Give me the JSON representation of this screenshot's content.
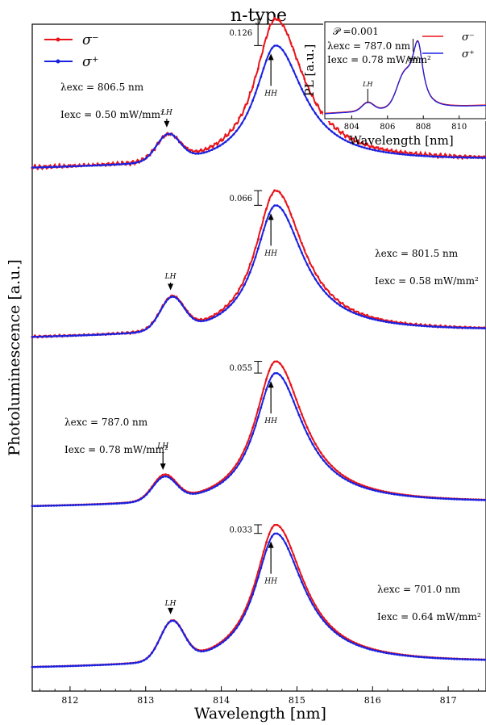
{
  "chart_data": {
    "type": "line",
    "title": "n-type",
    "xlabel": "Wavelength [nm]",
    "ylabel": "Photoluminescence [a.u.]",
    "xlim": [
      811.5,
      817.5
    ],
    "x_ticks": [
      812,
      813,
      814,
      815,
      816,
      817
    ],
    "legend": {
      "placement": "top-left",
      "entries": [
        "σ⁻",
        "σ⁺"
      ]
    },
    "colors": {
      "sigma_minus": "#e8141b",
      "sigma_plus": "#1a22e0"
    },
    "peak_labels": {
      "lh": "LH",
      "hh": "HH"
    },
    "panels": [
      {
        "lambda_label": "λexc = 806.5 nm",
        "intensity_label": "Iexc = 0.50 mW/mm²",
        "diff_label": "0.126",
        "lh_x": 813.3,
        "hh_x": 814.72,
        "sigma_minus": {
          "baseline": 0.06,
          "lh_height": 0.17,
          "hh_height": 0.99,
          "noise": 0.015
        },
        "sigma_plus": {
          "baseline": 0.06,
          "lh_height": 0.18,
          "hh_height": 0.81
        }
      },
      {
        "lambda_label": "λexc = 801.5 nm",
        "intensity_label": "Iexc = 0.58 mW/mm²",
        "diff_label": "0.066",
        "lh_x": 813.35,
        "hh_x": 814.72,
        "sigma_minus": {
          "baseline": 0.05,
          "lh_height": 0.22,
          "hh_height": 0.98,
          "noise": 0.008
        },
        "sigma_plus": {
          "baseline": 0.05,
          "lh_height": 0.22,
          "hh_height": 0.88
        }
      },
      {
        "lambda_label": "λexc = 787.0 nm",
        "intensity_label": "Iexc = 0.78 mW/mm²",
        "diff_label": "0.055",
        "lh_x": 813.25,
        "hh_x": 814.72,
        "sigma_minus": {
          "baseline": 0.03,
          "lh_height": 0.17,
          "hh_height": 0.98,
          "noise": 0
        },
        "sigma_plus": {
          "baseline": 0.03,
          "lh_height": 0.16,
          "hh_height": 0.9
        }
      },
      {
        "lambda_label": "λexc = 701.0 nm",
        "intensity_label": "Iexc = 0.64 mW/mm²",
        "diff_label": "0.033",
        "lh_x": 813.35,
        "hh_x": 814.72,
        "sigma_minus": {
          "baseline": 0.04,
          "lh_height": 0.27,
          "hh_height": 0.98,
          "noise": 0
        },
        "sigma_plus": {
          "baseline": 0.04,
          "lh_height": 0.27,
          "hh_height": 0.92
        }
      }
    ],
    "inset": {
      "xlabel": "Wavelength [nm]",
      "ylabel": "PL [a.u.]",
      "xlim": [
        802.5,
        811.5
      ],
      "x_ticks": [
        804,
        806,
        808,
        810
      ],
      "polarization_label": "𝒫 =0.001",
      "lambda_label": "λexc = 787.0 nm",
      "intensity_label": "Iexc = 0.78 mW/mm²",
      "lh_x": 804.9,
      "hh_x": 807.7
    }
  }
}
